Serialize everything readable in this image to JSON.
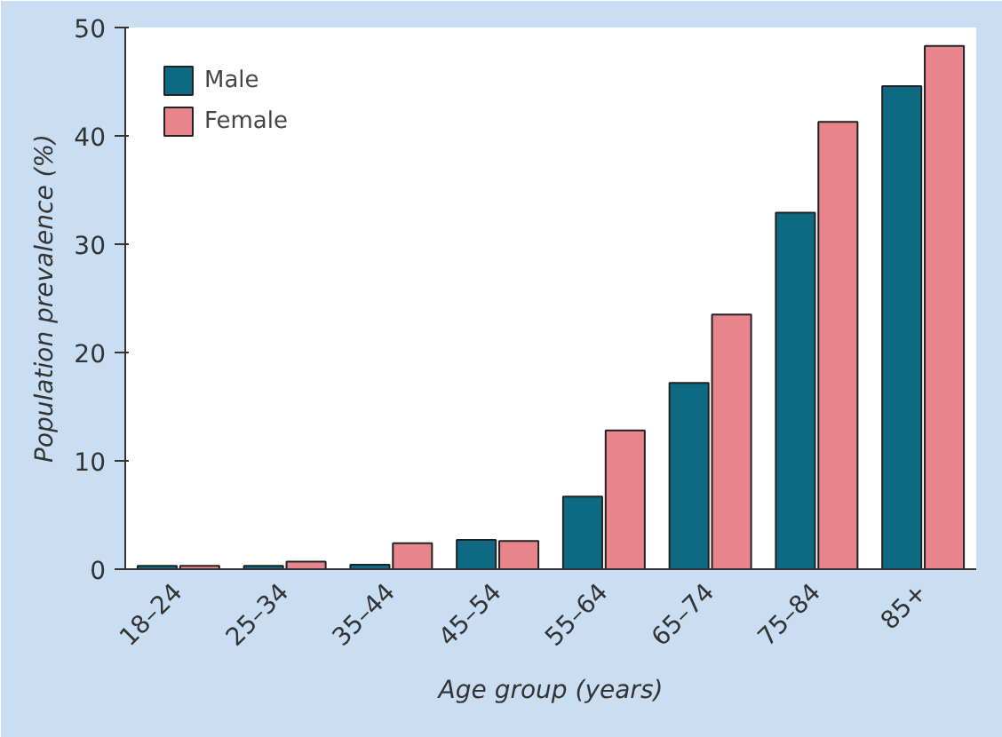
{
  "chart_data": {
    "type": "bar",
    "xlabel": "Age group (years)",
    "ylabel": "Population prevalence (%)",
    "categories": [
      "18–24",
      "25–34",
      "35–44",
      "45–54",
      "55–64",
      "65–74",
      "75–84",
      "85+"
    ],
    "series": [
      {
        "name": "Male",
        "color": "#0e6a82",
        "values": [
          0.3,
          0.3,
          0.4,
          2.7,
          6.7,
          17.2,
          32.9,
          44.6
        ]
      },
      {
        "name": "Female",
        "color": "#e8848c",
        "values": [
          0.3,
          0.7,
          2.4,
          2.6,
          12.8,
          23.5,
          41.3,
          48.3
        ]
      }
    ],
    "ylim": [
      0,
      50
    ],
    "yticks": [
      0,
      10,
      20,
      30,
      40,
      50
    ],
    "grid": false,
    "legend": "top left"
  }
}
